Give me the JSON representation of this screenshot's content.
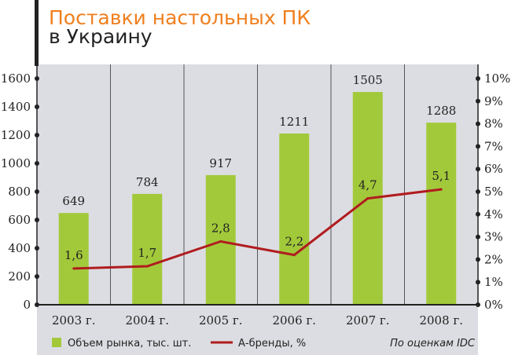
{
  "title_line1": "Поставки настольных ПК",
  "title_line2": "в Украину",
  "source_note": "По оценкам IDC",
  "colors": {
    "bar": "#a2c93a",
    "line": "#b01c1f",
    "title": "#f07f1e",
    "panel": "#dcdde2"
  },
  "chart_data": {
    "type": "bar",
    "title": "Поставки настольных ПК в Украину",
    "categories": [
      "2003 г.",
      "2004 г.",
      "2005 г.",
      "2006 г.",
      "2007 г.",
      "2008 г."
    ],
    "series": [
      {
        "name": "Объем рынка, тыс. шт.",
        "type": "bar",
        "axis": "left",
        "values": [
          649,
          784,
          917,
          1211,
          1505,
          1288
        ],
        "labels": [
          "649",
          "784",
          "917",
          "1211",
          "1505",
          "1288"
        ]
      },
      {
        "name": "А-бренды, %",
        "type": "line",
        "axis": "right",
        "values": [
          1.6,
          1.7,
          2.8,
          2.2,
          4.7,
          5.1
        ],
        "labels": [
          "1,6",
          "1,7",
          "2,8",
          "2,2",
          "4,7",
          "5,1"
        ]
      }
    ],
    "ylim": [
      0,
      1600
    ],
    "yticks": [
      "0",
      "200",
      "400",
      "600",
      "800",
      "1000",
      "1200",
      "1400",
      "1600"
    ],
    "y2lim": [
      0,
      10
    ],
    "y2ticks": [
      "0%",
      "1%",
      "2%",
      "3%",
      "4%",
      "5%",
      "6%",
      "7%",
      "8%",
      "9%",
      "10%"
    ],
    "legend_position": "bottom"
  }
}
